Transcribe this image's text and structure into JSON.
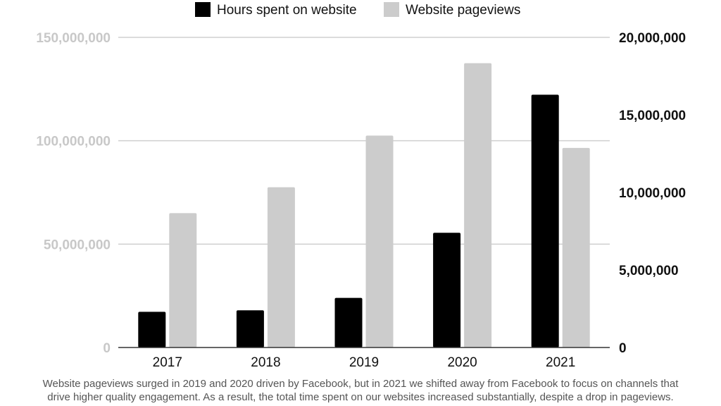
{
  "chart_data": {
    "type": "bar",
    "categories": [
      "2017",
      "2018",
      "2019",
      "2020",
      "2021"
    ],
    "series": [
      {
        "name": "Hours spent on website",
        "axis": "right",
        "color": "#000000",
        "values": [
          2300000,
          2400000,
          3200000,
          7400000,
          16300000
        ]
      },
      {
        "name": "Website pageviews",
        "axis": "left",
        "color": "#cccccc",
        "values": [
          65000000,
          77500000,
          102500000,
          137500000,
          96500000
        ]
      }
    ],
    "y_left": {
      "lim": [
        0,
        150000000
      ],
      "ticks": [
        "0",
        "50,000,000",
        "100,000,000",
        "150,000,000"
      ],
      "color": "#c8c8c8"
    },
    "y_right": {
      "lim": [
        0,
        20000000
      ],
      "ticks": [
        "0",
        "5,000,000",
        "10,000,000",
        "15,000,000",
        "20,000,000"
      ],
      "color": "#111111"
    },
    "grid": true,
    "legend": "top-center"
  },
  "caption": {
    "line1": "Website pageviews surged in 2019 and 2020 driven by Facebook, but in 2021 we shifted away from Facebook to focus on channels that",
    "line2": "drive higher quality engagement. As a result, the total time spent on our websites increased substantially, despite a drop in pageviews."
  }
}
